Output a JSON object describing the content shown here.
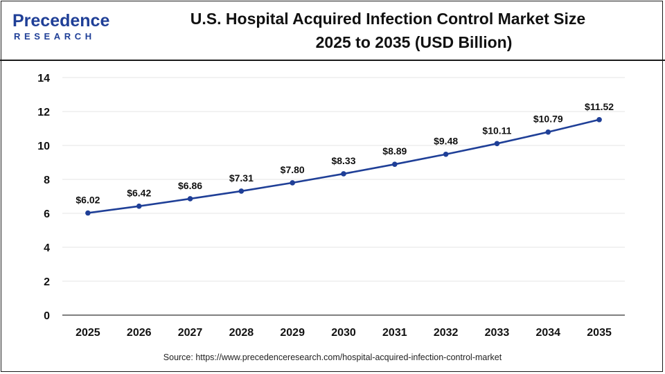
{
  "logo": {
    "main": "Precedence",
    "sub": "RESEARCH"
  },
  "title": {
    "line1": "U.S. Hospital Acquired Infection Control Market Size",
    "line2": "2025 to 2035 (USD Billion)"
  },
  "source": "Source: https://www.precedenceresearch.com/hospital-acquired-infection-control-market",
  "colors": {
    "line": "#1f3f97",
    "marker": "#1f3f97",
    "grid": "#e6e6e6",
    "axis": "#333333",
    "brand": "#1f3f97"
  },
  "chart_data": {
    "type": "line",
    "categories": [
      "2025",
      "2026",
      "2027",
      "2028",
      "2029",
      "2030",
      "2031",
      "2032",
      "2033",
      "2034",
      "2035"
    ],
    "values": [
      6.02,
      6.42,
      6.86,
      7.31,
      7.8,
      8.33,
      8.89,
      9.48,
      10.11,
      10.79,
      11.52
    ],
    "data_labels": [
      "$6.02",
      "$6.42",
      "$6.86",
      "$7.31",
      "$7.80",
      "$8.33",
      "$8.89",
      "$9.48",
      "$10.11",
      "$10.79",
      "$11.52"
    ],
    "y_ticks": [
      "0",
      "2",
      "4",
      "6",
      "8",
      "10",
      "12",
      "14"
    ],
    "ylim": [
      0,
      14
    ],
    "grid": true,
    "legend": "none"
  }
}
